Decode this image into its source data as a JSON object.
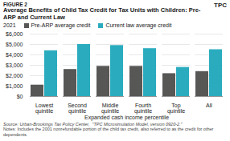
{
  "chart_data": {
    "type": "bar",
    "figure_label": "FIGURE 2",
    "logo_text": "TPC",
    "title": "Average Benefits of Child Tax Credit for Tax Units with Children: Pre-ARP and Current Law",
    "subtitle": "2021",
    "xlabel": "Expanded cash income percentile",
    "categories": [
      "Lowest quintile",
      "Second quintile",
      "Middle quintile",
      "Fourth quintile",
      "Top quintile",
      "All"
    ],
    "series": [
      {
        "name": "Pre-ARP average credit",
        "color": "#575756",
        "values": [
          1100,
          2600,
          2900,
          2900,
          2200,
          2400
        ]
      },
      {
        "name": "Current law average credit",
        "color": "#2aacbe",
        "values": [
          4400,
          5000,
          4900,
          4600,
          2800,
          4500
        ]
      }
    ],
    "ylim": [
      0,
      6000
    ],
    "yticks": [
      {
        "value": 0,
        "label": "$0"
      },
      {
        "value": 1000,
        "label": "$1,000"
      },
      {
        "value": 2000,
        "label": "$2,000"
      },
      {
        "value": 3000,
        "label": "$3,000"
      },
      {
        "value": 4000,
        "label": "$4,000"
      },
      {
        "value": 5000,
        "label": "$5,000"
      },
      {
        "value": 6000,
        "label": "$6,000"
      }
    ],
    "grid": true,
    "legend": "top",
    "source": "Source: Urban-Brookings Tax Policy Center,  \"TPC Microsimulation Model, version 0920-2.\"",
    "note": "Notes: Includes the 2001 nonrefundable portion of the child tax credit, also referred to as the credit for other dependents."
  }
}
